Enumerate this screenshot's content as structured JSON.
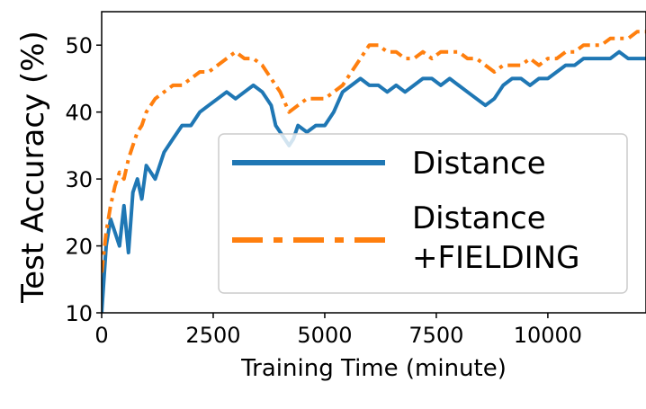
{
  "chart_data": {
    "type": "line",
    "xlabel": "Training Time (minute)",
    "ylabel": "Test Accuracy (%)",
    "xlim": [
      0,
      12200
    ],
    "ylim": [
      10,
      55
    ],
    "xticks": [
      0,
      2500,
      5000,
      7500,
      10000
    ],
    "yticks": [
      10,
      20,
      30,
      40,
      50
    ],
    "grid": false,
    "legend_position": "center-right",
    "series": [
      {
        "name": "Distance",
        "color": "#1f77b4",
        "style": "solid",
        "x": [
          0,
          100,
          200,
          300,
          400,
          500,
          600,
          700,
          800,
          900,
          1000,
          1200,
          1400,
          1600,
          1800,
          2000,
          2200,
          2400,
          2600,
          2800,
          3000,
          3200,
          3400,
          3600,
          3800,
          3900,
          4000,
          4100,
          4200,
          4300,
          4400,
          4600,
          4800,
          5000,
          5200,
          5400,
          5600,
          5800,
          6000,
          6200,
          6400,
          6600,
          6800,
          7000,
          7200,
          7400,
          7600,
          7800,
          8000,
          8200,
          8400,
          8600,
          8800,
          9000,
          9200,
          9400,
          9600,
          9800,
          10000,
          10200,
          10400,
          10600,
          10800,
          11000,
          11200,
          11400,
          11600,
          11800,
          12000,
          12200
        ],
        "values": [
          10,
          20,
          24,
          22,
          20,
          26,
          19,
          28,
          30,
          27,
          32,
          30,
          34,
          36,
          38,
          38,
          40,
          41,
          42,
          43,
          42,
          43,
          44,
          43,
          41,
          38,
          37,
          36,
          35,
          36,
          38,
          37,
          38,
          38,
          40,
          43,
          44,
          45,
          44,
          44,
          43,
          44,
          43,
          44,
          45,
          45,
          44,
          45,
          44,
          43,
          42,
          41,
          42,
          44,
          45,
          45,
          44,
          45,
          45,
          46,
          47,
          47,
          48,
          48,
          48,
          48,
          49,
          48,
          48,
          48
        ]
      },
      {
        "name": "Distance\n+FIELDING",
        "color": "#ff7f0e",
        "style": "dashdot",
        "x": [
          0,
          100,
          200,
          300,
          400,
          500,
          600,
          700,
          800,
          900,
          1000,
          1200,
          1400,
          1600,
          1800,
          2000,
          2200,
          2400,
          2600,
          2800,
          3000,
          3200,
          3400,
          3600,
          3800,
          4000,
          4200,
          4400,
          4600,
          4800,
          5000,
          5200,
          5400,
          5600,
          5800,
          6000,
          6200,
          6400,
          6600,
          6800,
          7000,
          7200,
          7400,
          7600,
          7800,
          8000,
          8200,
          8400,
          8600,
          8800,
          9000,
          9200,
          9400,
          9600,
          9800,
          10000,
          10200,
          10400,
          10600,
          10800,
          11000,
          11200,
          11400,
          11600,
          11800,
          12000,
          12200
        ],
        "values": [
          16,
          22,
          26,
          29,
          31,
          30,
          33,
          35,
          37,
          38,
          40,
          42,
          43,
          44,
          44,
          45,
          46,
          46,
          47,
          48,
          49,
          48,
          48,
          47,
          45,
          43,
          40,
          41,
          42,
          42,
          42,
          43,
          44,
          46,
          48,
          50,
          50,
          49,
          49,
          48,
          48,
          49,
          48,
          49,
          49,
          49,
          48,
          48,
          47,
          46,
          47,
          47,
          47,
          48,
          47,
          48,
          48,
          49,
          49,
          50,
          50,
          50,
          51,
          51,
          51,
          52,
          52
        ]
      }
    ]
  }
}
